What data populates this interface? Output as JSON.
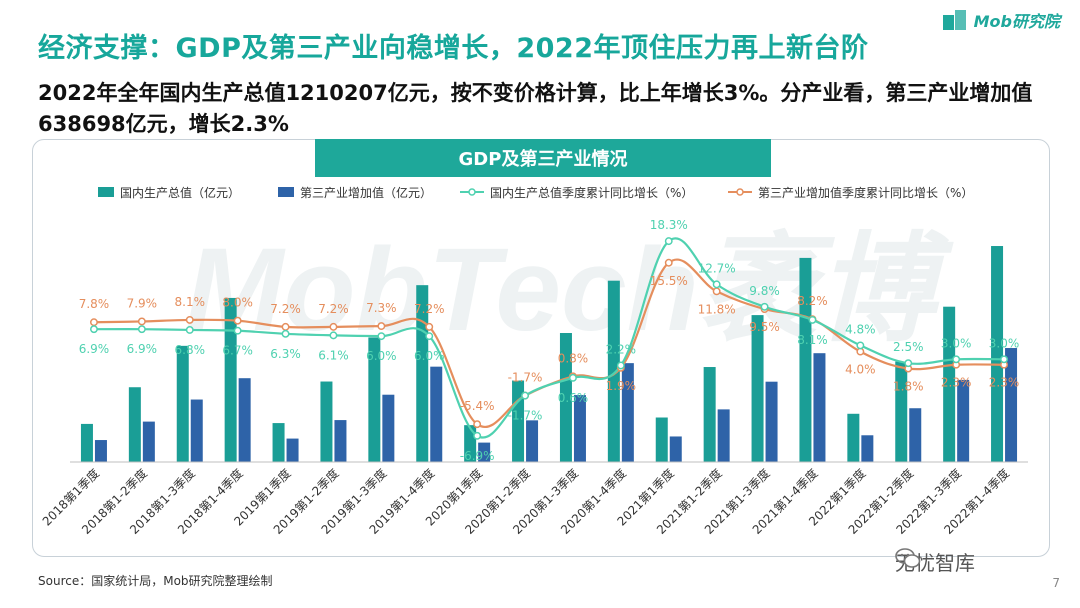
{
  "page": {
    "title": "经济支撑：GDP及第三产业向稳增长，2022年顶住压力再上新台阶",
    "subtitle": "2022年全年国内生产总值1210207亿元，按不变价格计算，比上年增长3%。分产业看，第三产业增加值638698亿元，增长2.3%",
    "logo_text": "Mob研究院",
    "watermark": "MobTech袤博",
    "source": "Source：国家统计局，Mob研究院整理绘制",
    "wechat_label": "无忧智库",
    "page_number": "7"
  },
  "colors": {
    "gdp_bar": "#1a9e96",
    "tertiary_bar": "#2e63a8",
    "gdp_line": "#4fd1b0",
    "tertiary_line": "#e58e5d",
    "header_bg": "#1ea89a"
  },
  "chart_data": {
    "type": "bar",
    "title": "GDP及第三产业情况",
    "categories": [
      "2018第1季度",
      "2018第1-2季度",
      "2018第1-3季度",
      "2018第1-4季度",
      "2019第1季度",
      "2019第1-2季度",
      "2019第1-3季度",
      "2019第1-4季度",
      "2020第1季度",
      "2020第1-2季度",
      "2020第1-3季度",
      "2020第1-4季度",
      "2021第1季度",
      "2021第1-2季度",
      "2021第1-3季度",
      "2021第1-4季度",
      "2022第1季度",
      "2022第1-2季度",
      "2022第1-3季度",
      "2022第1-4季度"
    ],
    "bar_ylim": [
      0,
      1300000
    ],
    "line_ylim": [
      -9,
      20
    ],
    "series": [
      {
        "name": "国内生产总值（亿元）",
        "type": "bar",
        "values": [
          213433,
          418961,
          650899,
          919281,
          218063,
          450933,
          697798,
          990865,
          206504,
          456614,
          722786,
          1015986,
          249310,
          532167,
          823131,
          1143670,
          270178,
          562642,
          870269,
          1210207
        ]
      },
      {
        "name": "第三产业增加值（亿元）",
        "type": "bar",
        "values": [
          123038,
          226360,
          350000,
          469575,
          131234,
          234884,
          377040,
          534233,
          108690,
          233445,
          375000,
          553977,
          143075,
          294839,
          450000,
          609680,
          149740,
          301267,
          460000,
          638698
        ]
      },
      {
        "name": "国内生产总值季度累计同比增长（%）",
        "type": "line",
        "values": [
          6.9,
          6.9,
          6.8,
          6.7,
          6.3,
          6.1,
          6.0,
          6.0,
          -6.9,
          -1.7,
          0.6,
          2.2,
          18.3,
          12.7,
          9.8,
          8.1,
          4.8,
          2.5,
          3.0,
          3.0
        ],
        "labels": [
          "6.9%",
          "6.9%",
          "6.8%",
          "6.7%",
          "6.3%",
          "6.1%",
          "6.0%",
          "6.0%",
          "-6.9%",
          "-1.7%",
          "0.6%",
          "2.2%",
          "18.3%",
          "12.7%",
          "9.8%",
          "8.1%",
          "4.8%",
          "2.5%",
          "3.0%",
          "3.0%"
        ]
      },
      {
        "name": "第三产业增加值季度累计同比增长（%）",
        "type": "line",
        "values": [
          7.8,
          7.9,
          8.1,
          8.0,
          7.2,
          7.2,
          7.3,
          7.2,
          -5.4,
          -1.7,
          0.8,
          1.9,
          15.5,
          11.8,
          9.5,
          8.2,
          4.0,
          1.8,
          2.3,
          2.3
        ],
        "labels": [
          "7.8%",
          "7.9%",
          "8.1%",
          "8.0%",
          "7.2%",
          "7.2%",
          "7.3%",
          "7.2%",
          "-5.4%",
          "-1.7%",
          "0.8%",
          "1.9%",
          "15.5%",
          "11.8%",
          "9.5%",
          "8.2%",
          "4.0%",
          "1.8%",
          "2.3%",
          "2.3%"
        ]
      }
    ],
    "legend_placement": "top"
  }
}
